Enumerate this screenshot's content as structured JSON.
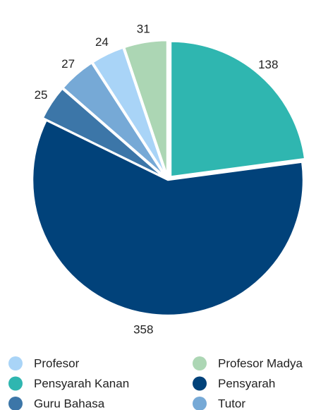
{
  "chart_data": {
    "type": "pie",
    "categories": [
      "Profesor",
      "Profesor Madya",
      "Pensyarah Kanan",
      "Pensyarah",
      "Guru Bahasa",
      "Tutor"
    ],
    "values": [
      24,
      31,
      138,
      358,
      25,
      27
    ],
    "colors": [
      "#a9d4f7",
      "#acd6b4",
      "#2fb6b0",
      "#01427a",
      "#3c76a8",
      "#76a9d6"
    ],
    "legend": "bottom"
  }
}
